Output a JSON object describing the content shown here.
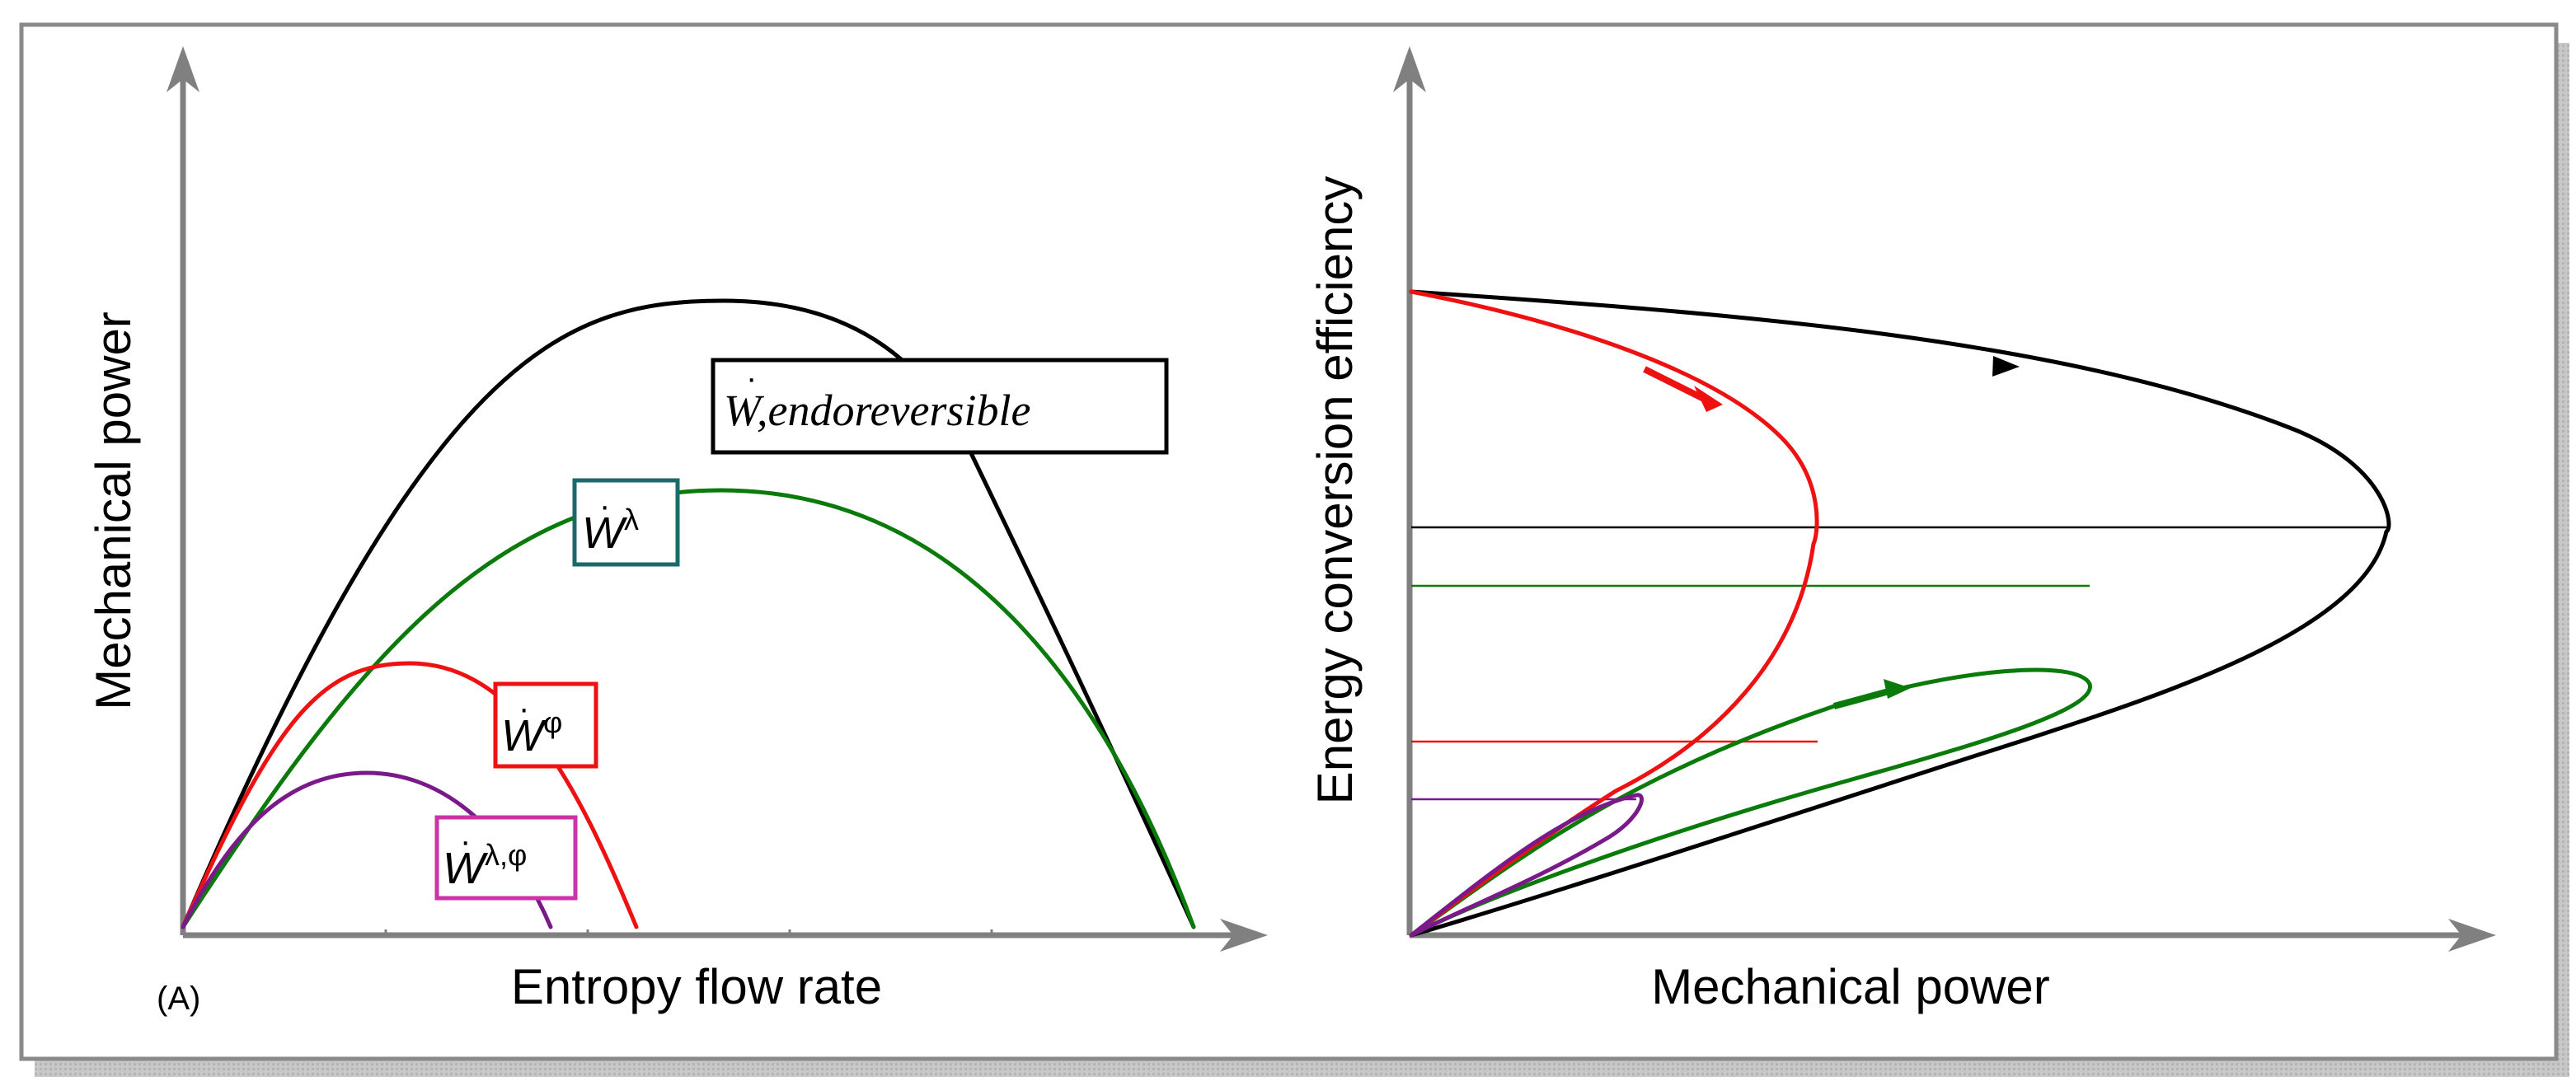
{
  "panel_a": {
    "panel_label": "(A)",
    "x_axis_label": "Entropy flow rate",
    "y_axis_label": "Mechanical power",
    "labels": {
      "endoreversible": {
        "dot": "W",
        "text": ",endoreversible"
      },
      "lambda": {
        "dot": "W",
        "sup": "λ"
      },
      "phi": {
        "dot": "W",
        "sup": "φ"
      },
      "lambda_phi": {
        "dot": "W",
        "sup": "λ,φ"
      }
    }
  },
  "panel_b": {
    "x_axis_label": "Mechanical power",
    "y_axis_label": "Energy conversion efficiency"
  },
  "colors": {
    "endoreversible": "#000000",
    "lambda": "#0a7a0a",
    "phi": "#ee1111",
    "lambda_phi": "#7a1a8a",
    "lambda_box": "#1a6a6a",
    "lambda_phi_box": "#cc33aa",
    "axis": "#808080",
    "frame": "#8a8a8a"
  }
}
